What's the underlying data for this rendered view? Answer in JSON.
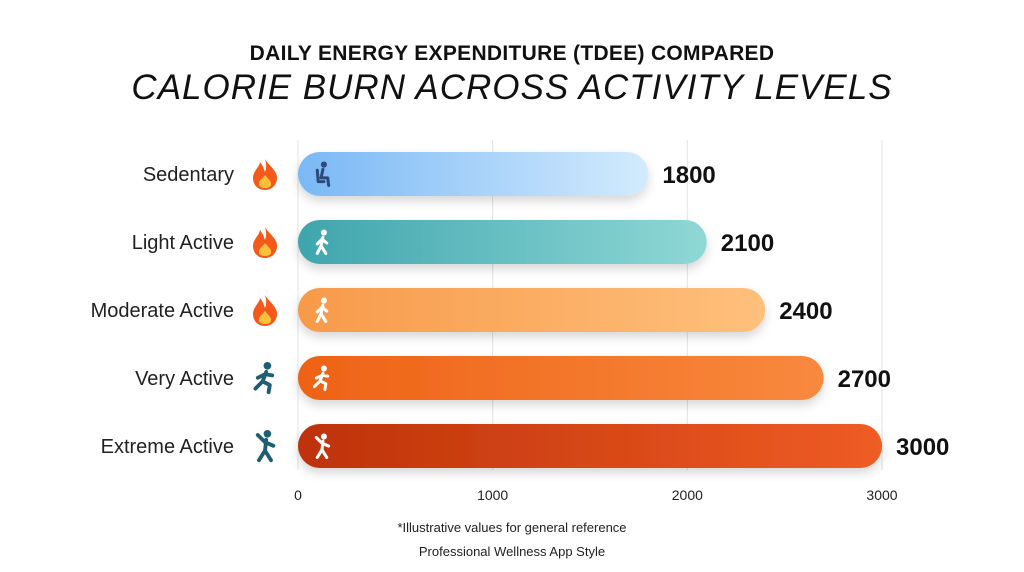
{
  "chart_data": {
    "type": "bar",
    "orientation": "horizontal",
    "title": "DAILY ENERGY EXPENDITURE (TDEE) COMPARED",
    "subtitle": "CALORIE BURN ACROSS ACTIVITY LEVELS",
    "categories": [
      "Sedentary",
      "Light Active",
      "Moderate Active",
      "Very Active",
      "Extreme Active"
    ],
    "values": [
      1800,
      2100,
      2400,
      2700,
      3000
    ],
    "xlim": [
      0,
      3000
    ],
    "x_ticks": [
      0,
      1000,
      2000,
      3000
    ],
    "grid": true,
    "legend": "none",
    "label_icons": [
      "fire-icon",
      "fire-icon",
      "fire-icon",
      "runner-icon",
      "dancer-icon"
    ],
    "bar_icons": [
      "seated-person-icon",
      "walking-person-icon",
      "walking-person-icon",
      "running-person-icon",
      "dancing-person-icon"
    ],
    "bar_colors": [
      [
        "#7ab8f5",
        "#d3ebfd"
      ],
      [
        "#3fa5ad",
        "#8fd8d6"
      ],
      [
        "#f79a4a",
        "#ffc07c"
      ],
      [
        "#ee6216",
        "#f8893e"
      ],
      [
        "#bd3209",
        "#ef5c25"
      ]
    ]
  },
  "footnote": "*Illustrative values for general reference",
  "byline": "Professional Wellness App Style"
}
